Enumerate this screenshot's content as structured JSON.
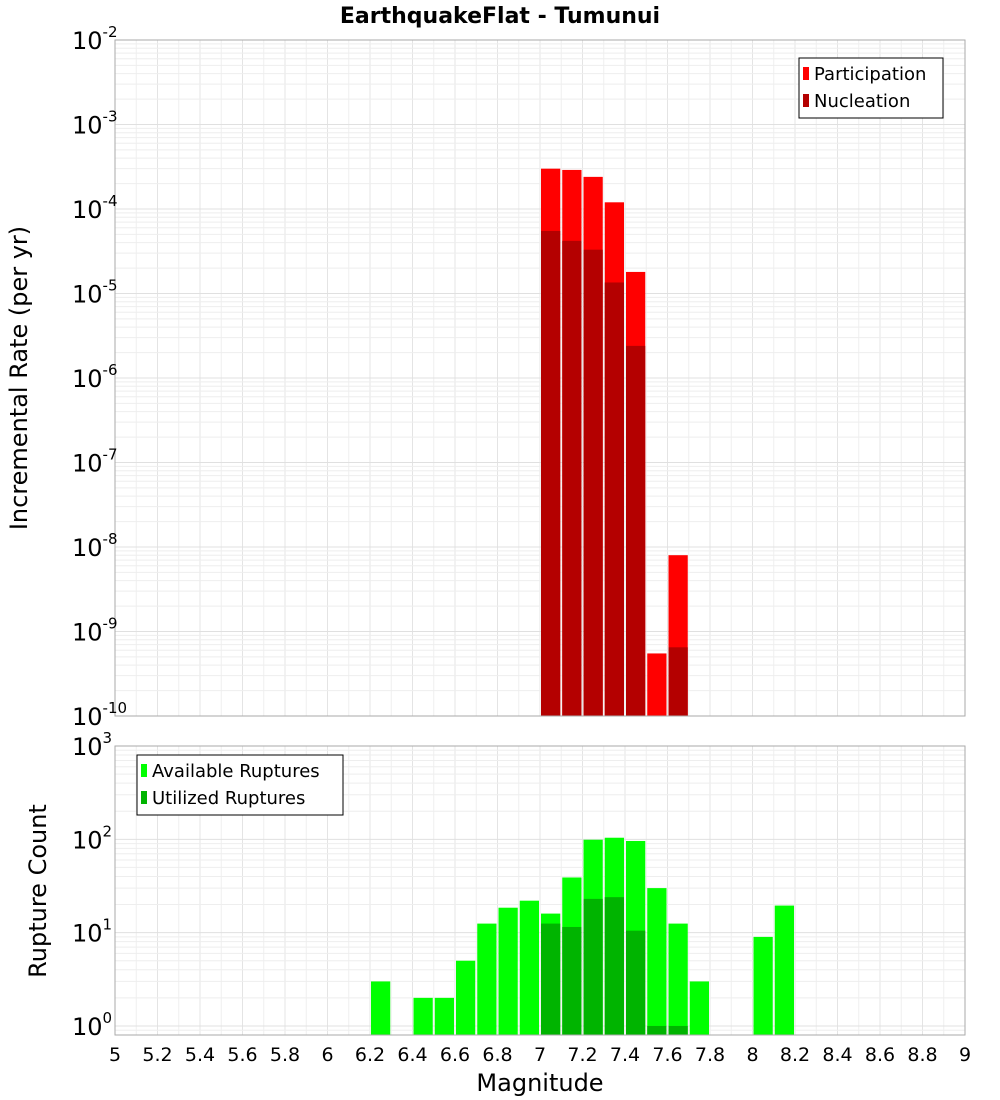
{
  "chart_data": [
    {
      "type": "bar",
      "title": "EarthquakeFlat - Tumunui",
      "ylabel": "Incremental Rate (per yr)",
      "xlabel": "",
      "yscale": "log",
      "ylim": [
        1e-10,
        0.01
      ],
      "xlim": [
        5,
        9
      ],
      "grid": true,
      "legend_position": "top-right",
      "bin_width": 0.1,
      "series": [
        {
          "name": "Participation",
          "color": "#ff0000",
          "points": [
            {
              "x": 7.05,
              "y": 0.0003
            },
            {
              "x": 7.15,
              "y": 0.00029
            },
            {
              "x": 7.25,
              "y": 0.00024
            },
            {
              "x": 7.35,
              "y": 0.00012
            },
            {
              "x": 7.45,
              "y": 1.8e-05
            },
            {
              "x": 7.55,
              "y": 5.5e-10
            },
            {
              "x": 7.65,
              "y": 8e-09
            }
          ]
        },
        {
          "name": "Nucleation",
          "color": "#b40000",
          "points": [
            {
              "x": 7.05,
              "y": 5.5e-05
            },
            {
              "x": 7.15,
              "y": 4.2e-05
            },
            {
              "x": 7.25,
              "y": 3.3e-05
            },
            {
              "x": 7.35,
              "y": 1.35e-05
            },
            {
              "x": 7.45,
              "y": 2.4e-06
            },
            {
              "x": 7.65,
              "y": 6.5e-10
            }
          ]
        }
      ],
      "y_ticks": [
        {
          "base": "10",
          "exp": "-10",
          "value": 1e-10
        },
        {
          "base": "10",
          "exp": "-9",
          "value": 1e-09
        },
        {
          "base": "10",
          "exp": "-8",
          "value": 1e-08
        },
        {
          "base": "10",
          "exp": "-7",
          "value": 1e-07
        },
        {
          "base": "10",
          "exp": "-6",
          "value": 1e-06
        },
        {
          "base": "10",
          "exp": "-5",
          "value": 1e-05
        },
        {
          "base": "10",
          "exp": "-4",
          "value": 0.0001
        },
        {
          "base": "10",
          "exp": "-3",
          "value": 0.001
        },
        {
          "base": "10",
          "exp": "-2",
          "value": 0.01
        }
      ]
    },
    {
      "type": "bar",
      "title": "",
      "ylabel": "Rupture Count",
      "xlabel": "Magnitude",
      "yscale": "log",
      "ylim": [
        0.8,
        1000
      ],
      "xlim": [
        5,
        9
      ],
      "grid": true,
      "legend_position": "top-left",
      "bin_width": 0.1,
      "series": [
        {
          "name": "Available Ruptures",
          "color": "#00ff00",
          "points": [
            {
              "x": 6.25,
              "y": 3
            },
            {
              "x": 6.45,
              "y": 2
            },
            {
              "x": 6.55,
              "y": 2
            },
            {
              "x": 6.65,
              "y": 5
            },
            {
              "x": 6.75,
              "y": 12.5
            },
            {
              "x": 6.85,
              "y": 18.5
            },
            {
              "x": 6.95,
              "y": 22
            },
            {
              "x": 7.05,
              "y": 16
            },
            {
              "x": 7.15,
              "y": 39
            },
            {
              "x": 7.25,
              "y": 99
            },
            {
              "x": 7.35,
              "y": 104
            },
            {
              "x": 7.45,
              "y": 96
            },
            {
              "x": 7.55,
              "y": 30
            },
            {
              "x": 7.65,
              "y": 12.5
            },
            {
              "x": 7.75,
              "y": 3
            },
            {
              "x": 8.05,
              "y": 9
            },
            {
              "x": 8.15,
              "y": 19.5
            }
          ]
        },
        {
          "name": "Utilized Ruptures",
          "color": "#00b400",
          "points": [
            {
              "x": 7.05,
              "y": 12.5
            },
            {
              "x": 7.15,
              "y": 11.5
            },
            {
              "x": 7.25,
              "y": 23
            },
            {
              "x": 7.35,
              "y": 24
            },
            {
              "x": 7.45,
              "y": 10.5
            },
            {
              "x": 7.55,
              "y": 1
            },
            {
              "x": 7.65,
              "y": 1
            }
          ]
        }
      ],
      "y_ticks": [
        {
          "base": "10",
          "exp": "0",
          "value": 1
        },
        {
          "base": "10",
          "exp": "1",
          "value": 10
        },
        {
          "base": "10",
          "exp": "2",
          "value": 100
        },
        {
          "base": "10",
          "exp": "3",
          "value": 1000
        }
      ],
      "x_ticks": [
        "5",
        "5.2",
        "5.4",
        "5.6",
        "5.8",
        "6",
        "6.2",
        "6.4",
        "6.6",
        "6.8",
        "7",
        "7.2",
        "7.4",
        "7.6",
        "7.8",
        "8",
        "8.2",
        "8.4",
        "8.6",
        "8.8",
        "9"
      ]
    }
  ]
}
